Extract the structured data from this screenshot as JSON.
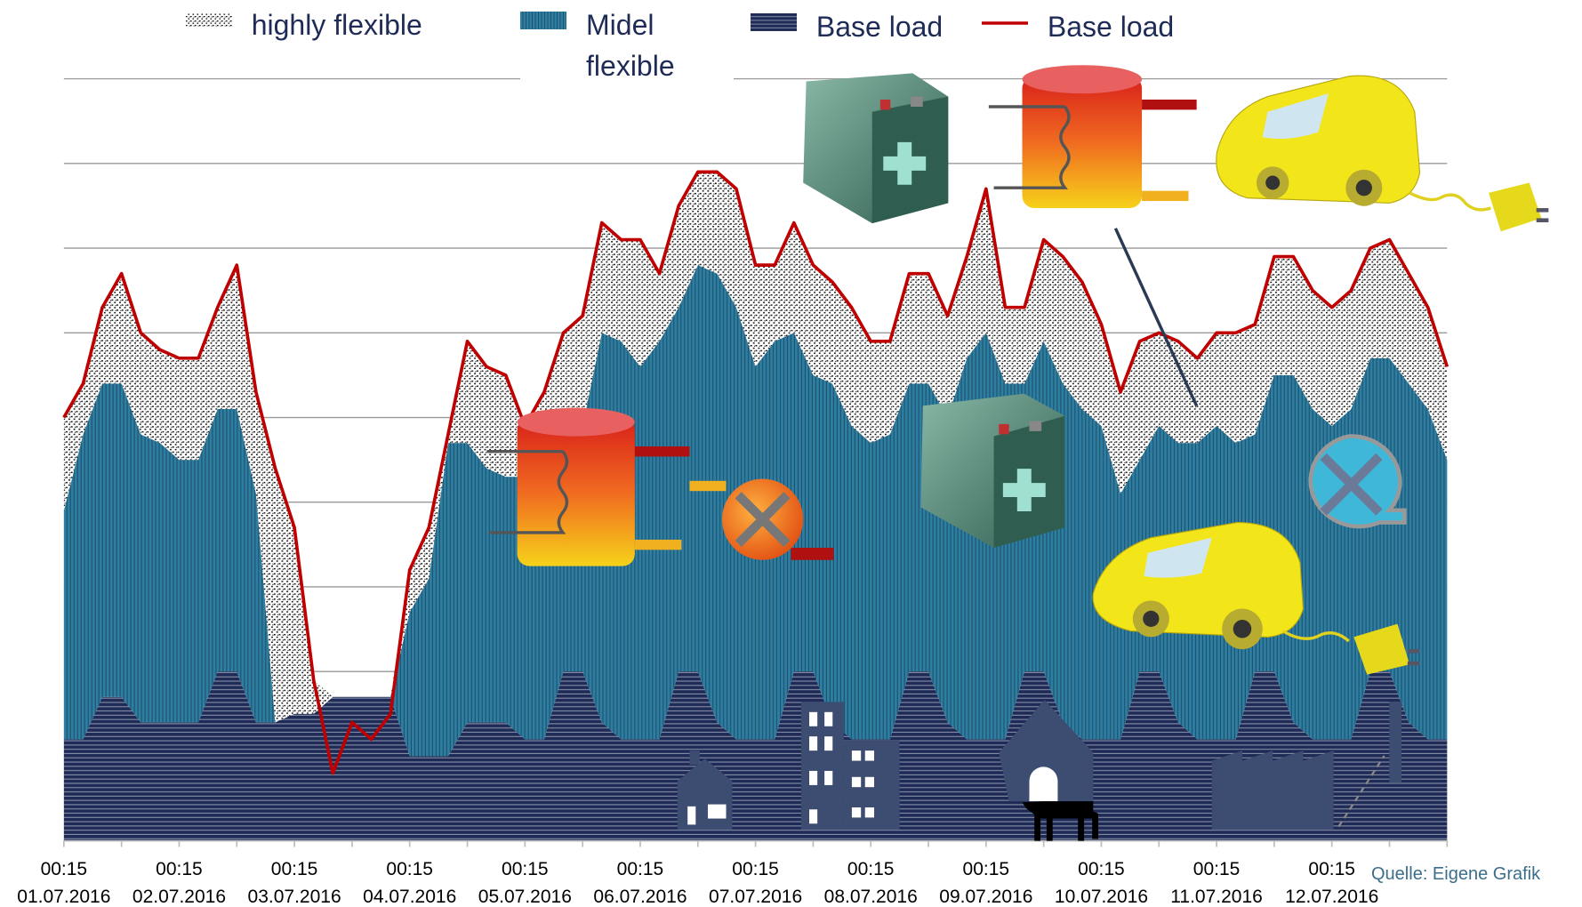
{
  "chart_data": {
    "type": "area",
    "categories": [
      "00:15\n01.07.2016",
      null,
      null,
      null,
      null,
      null,
      "00:15\n02.07.2016",
      null,
      null,
      null,
      null,
      null,
      "00:15\n03.07.2016",
      null,
      null,
      null,
      null,
      null,
      "00:15\n04.07.2016",
      null,
      null,
      null,
      null,
      null,
      "00:15\n05.07.2016",
      null,
      null,
      null,
      null,
      null,
      "00:15\n06.07.2016",
      null,
      null,
      null,
      null,
      null,
      "00:15\n07.07.2016",
      null,
      null,
      null,
      null,
      null,
      "00:15\n08.07.2016",
      null,
      null,
      null,
      null,
      null,
      "00:15\n09.07.2016",
      null,
      null,
      null,
      null,
      null,
      "00:15\n10.07.2016",
      null,
      null,
      null,
      null,
      null,
      "00:15\n11.07.2016",
      null,
      null,
      null,
      null,
      null,
      "00:15\n12.07.2016",
      null,
      null,
      null,
      null,
      null,
      null
    ],
    "series": [
      {
        "name": "highly flexible",
        "type": "area",
        "pattern": "dots",
        "color": "#111111",
        "values": [
          1.1,
          0.6,
          0.9,
          1.3,
          1.2,
          1.1,
          1.2,
          1.2,
          1.2,
          1.7,
          1.2,
          3.0,
          2.2,
          0.4,
          0,
          0,
          0,
          0,
          0.5,
          0.6,
          0.1,
          1.2,
          1.2,
          1.2,
          0.6,
          0.9,
          1.3,
          1.3,
          1.3,
          1.2,
          1.5,
          0.8,
          1.2,
          1.1,
          1.2,
          1.4,
          1.2,
          0.9,
          1.3,
          1.3,
          1.2,
          1.4,
          1.2,
          1.1,
          1.3,
          1.3,
          1.2,
          1.2,
          1.7,
          0.9,
          0.9,
          1.2,
          1.5,
          1.5,
          1.2,
          1.2,
          1.4,
          1.1,
          1.2,
          1.0,
          1.1,
          1.3,
          1.3,
          1.4,
          1.4,
          1.4,
          1.4,
          1.4,
          1.3,
          1.4,
          1.3,
          1.2,
          1.1
        ]
      },
      {
        "name": "Midel flexible",
        "type": "area",
        "pattern": "vertical-stripes",
        "color": "#2e7ea3",
        "values": [
          2.7,
          3.6,
          3.7,
          3.7,
          3.4,
          3.3,
          3.1,
          3.1,
          3.1,
          3.1,
          2.7,
          0,
          0,
          0,
          0,
          0,
          0,
          0,
          1.7,
          2.1,
          3.7,
          3.3,
          3.0,
          2.9,
          3.1,
          3.2,
          2.7,
          2.9,
          4.6,
          4.7,
          4.4,
          4.7,
          4.3,
          4.8,
          5.3,
          5.1,
          4.4,
          4.7,
          4.0,
          3.5,
          4.0,
          3.7,
          3.5,
          3.6,
          3.4,
          3.4,
          3.6,
          4.5,
          4.8,
          4.2,
          3.4,
          3.9,
          4.0,
          3.9,
          3.7,
          2.9,
          2.5,
          2.9,
          3.3,
          3.5,
          3.7,
          3.5,
          2.8,
          3.5,
          4.1,
          3.9,
          3.7,
          3.9,
          3.7,
          3.7,
          4.0,
          3.9,
          3.3
        ]
      },
      {
        "name": "Base load",
        "type": "area",
        "pattern": "horizontal-stripes",
        "color": "#1f2b57",
        "values": [
          1.2,
          1.2,
          1.7,
          1.7,
          1.4,
          1.4,
          1.4,
          1.4,
          2.0,
          2.0,
          1.4,
          1.4,
          1.5,
          1.5,
          1.7,
          1.7,
          1.7,
          1.7,
          1.0,
          1.0,
          1.0,
          1.4,
          1.4,
          1.4,
          1.2,
          1.2,
          2.0,
          2.0,
          1.4,
          1.2,
          1.2,
          1.2,
          2.0,
          2.0,
          1.4,
          1.2,
          1.2,
          1.2,
          2.0,
          2.0,
          1.4,
          1.2,
          1.2,
          1.2,
          2.0,
          2.0,
          1.4,
          1.2,
          1.2,
          1.2,
          2.0,
          2.0,
          1.4,
          1.2,
          1.2,
          1.2,
          2.0,
          2.0,
          1.4,
          1.2,
          1.2,
          1.2,
          2.0,
          2.0,
          1.4,
          1.2,
          1.2,
          1.2,
          2.0,
          2.0,
          1.4,
          1.2,
          1.2
        ]
      },
      {
        "name": "Base load",
        "type": "line",
        "color": "#c00000",
        "values": [
          5.0,
          5.4,
          6.3,
          6.7,
          6.0,
          5.8,
          5.7,
          5.7,
          6.3,
          6.8,
          5.3,
          4.4,
          3.7,
          1.9,
          0.8,
          1.4,
          1.2,
          1.5,
          3.2,
          3.7,
          4.8,
          5.9,
          5.6,
          5.5,
          4.9,
          5.3,
          6.0,
          6.2,
          7.3,
          7.1,
          7.1,
          6.7,
          7.5,
          7.9,
          7.9,
          7.7,
          6.8,
          6.8,
          7.3,
          6.8,
          6.6,
          6.3,
          5.9,
          5.9,
          6.7,
          6.7,
          6.2,
          6.9,
          7.7,
          6.3,
          6.3,
          7.1,
          6.9,
          6.6,
          6.1,
          5.3,
          5.9,
          6.0,
          5.9,
          5.7,
          6.0,
          6.0,
          6.1,
          6.9,
          6.9,
          6.5,
          6.3,
          6.5,
          7.0,
          7.1,
          6.7,
          6.3,
          5.6
        ]
      }
    ],
    "ylim": [
      0,
      9
    ],
    "yticks": [
      0,
      1,
      2,
      3,
      4,
      5,
      6,
      7,
      8,
      9
    ],
    "grid": true,
    "source": "Quelle: Eigene Grafik"
  }
}
